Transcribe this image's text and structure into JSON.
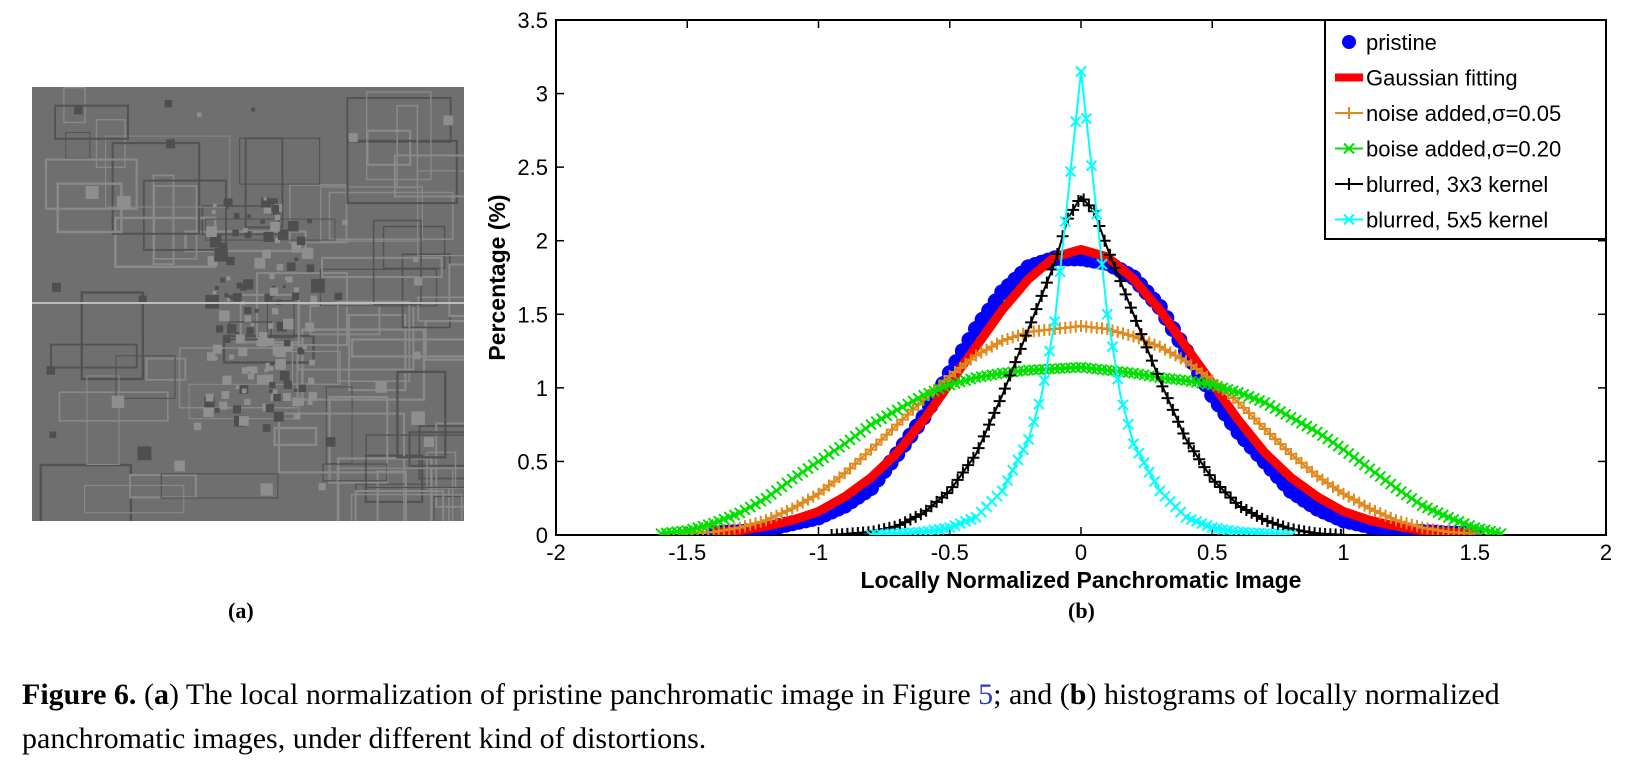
{
  "panel_a": {
    "label": "(a)",
    "description_icon": "grayscale-texture-image"
  },
  "panel_b": {
    "label": "(b)"
  },
  "caption": {
    "prefix": "Figure 6.",
    "open_a": " (",
    "a": "a",
    "text_a": ") The local normalization of pristine panchromatic image in Figure ",
    "ref": "5",
    "mid": "; and (",
    "b": "b",
    "text_b": ") histograms of locally normalized panchromatic images, under different kind of distortions."
  },
  "chart_data": {
    "type": "line",
    "xlabel": "Locally Normalized Panchromatic Image",
    "ylabel": "Percentage (%)",
    "xlim": [
      -2,
      2
    ],
    "ylim": [
      0,
      3.5
    ],
    "x_ticks": [
      "-2",
      "-1.5",
      "-1",
      "-0.5",
      "0",
      "0.5",
      "1",
      "1.5",
      "2"
    ],
    "y_ticks": [
      "0",
      "0.5",
      "1",
      "1.5",
      "2",
      "2.5",
      "3",
      "3.5"
    ],
    "legend_position": "top-right",
    "series": [
      {
        "name": "pristine",
        "color": "#0000ff",
        "marker": "dot",
        "points": [
          [
            -1.4,
            0.01
          ],
          [
            -1.3,
            0.02
          ],
          [
            -1.2,
            0.04
          ],
          [
            -1.1,
            0.08
          ],
          [
            -1.0,
            0.12
          ],
          [
            -0.9,
            0.2
          ],
          [
            -0.8,
            0.32
          ],
          [
            -0.7,
            0.55
          ],
          [
            -0.6,
            0.8
          ],
          [
            -0.5,
            1.1
          ],
          [
            -0.4,
            1.4
          ],
          [
            -0.3,
            1.65
          ],
          [
            -0.2,
            1.82
          ],
          [
            -0.1,
            1.88
          ],
          [
            0.0,
            1.88
          ],
          [
            0.1,
            1.85
          ],
          [
            0.2,
            1.75
          ],
          [
            0.3,
            1.55
          ],
          [
            0.4,
            1.25
          ],
          [
            0.5,
            0.95
          ],
          [
            0.6,
            0.7
          ],
          [
            0.7,
            0.5
          ],
          [
            0.8,
            0.3
          ],
          [
            0.9,
            0.18
          ],
          [
            1.0,
            0.1
          ],
          [
            1.1,
            0.06
          ],
          [
            1.2,
            0.03
          ],
          [
            1.3,
            0.02
          ],
          [
            1.4,
            0.01
          ],
          [
            1.5,
            0.01
          ]
        ]
      },
      {
        "name": "Gaussian fitting",
        "color": "#ff0000",
        "marker": "thick-line",
        "points": [
          [
            -1.4,
            0.02
          ],
          [
            -1.3,
            0.03
          ],
          [
            -1.2,
            0.06
          ],
          [
            -1.1,
            0.1
          ],
          [
            -1.0,
            0.16
          ],
          [
            -0.9,
            0.26
          ],
          [
            -0.8,
            0.39
          ],
          [
            -0.7,
            0.56
          ],
          [
            -0.6,
            0.78
          ],
          [
            -0.5,
            1.03
          ],
          [
            -0.4,
            1.28
          ],
          [
            -0.3,
            1.53
          ],
          [
            -0.2,
            1.74
          ],
          [
            -0.1,
            1.89
          ],
          [
            0.0,
            1.94
          ],
          [
            0.1,
            1.89
          ],
          [
            0.2,
            1.74
          ],
          [
            0.3,
            1.53
          ],
          [
            0.4,
            1.28
          ],
          [
            0.5,
            1.03
          ],
          [
            0.6,
            0.78
          ],
          [
            0.7,
            0.56
          ],
          [
            0.8,
            0.39
          ],
          [
            0.9,
            0.26
          ],
          [
            1.0,
            0.16
          ],
          [
            1.1,
            0.1
          ],
          [
            1.2,
            0.06
          ],
          [
            1.3,
            0.03
          ],
          [
            1.4,
            0.02
          ],
          [
            1.5,
            0.01
          ]
        ]
      },
      {
        "name": "noise added,σ=0.05",
        "color": "#e08a1e",
        "marker": "plus",
        "points": [
          [
            -1.5,
            0.01
          ],
          [
            -1.4,
            0.02
          ],
          [
            -1.3,
            0.05
          ],
          [
            -1.2,
            0.1
          ],
          [
            -1.1,
            0.18
          ],
          [
            -1.0,
            0.28
          ],
          [
            -0.9,
            0.42
          ],
          [
            -0.8,
            0.58
          ],
          [
            -0.7,
            0.75
          ],
          [
            -0.6,
            0.92
          ],
          [
            -0.5,
            1.08
          ],
          [
            -0.4,
            1.22
          ],
          [
            -0.3,
            1.32
          ],
          [
            -0.2,
            1.38
          ],
          [
            -0.1,
            1.4
          ],
          [
            0.0,
            1.42
          ],
          [
            0.1,
            1.4
          ],
          [
            0.2,
            1.35
          ],
          [
            0.3,
            1.28
          ],
          [
            0.4,
            1.18
          ],
          [
            0.5,
            1.05
          ],
          [
            0.6,
            0.9
          ],
          [
            0.7,
            0.72
          ],
          [
            0.8,
            0.55
          ],
          [
            0.9,
            0.4
          ],
          [
            1.0,
            0.28
          ],
          [
            1.1,
            0.18
          ],
          [
            1.2,
            0.1
          ],
          [
            1.3,
            0.05
          ],
          [
            1.4,
            0.02
          ],
          [
            1.5,
            0.01
          ]
        ]
      },
      {
        "name": "boise added,σ=0.20",
        "color": "#00e000",
        "marker": "x",
        "points": [
          [
            -1.6,
            0.01
          ],
          [
            -1.5,
            0.03
          ],
          [
            -1.4,
            0.08
          ],
          [
            -1.3,
            0.15
          ],
          [
            -1.2,
            0.25
          ],
          [
            -1.1,
            0.38
          ],
          [
            -1.0,
            0.5
          ],
          [
            -0.9,
            0.62
          ],
          [
            -0.8,
            0.75
          ],
          [
            -0.7,
            0.85
          ],
          [
            -0.6,
            0.95
          ],
          [
            -0.5,
            1.02
          ],
          [
            -0.4,
            1.07
          ],
          [
            -0.3,
            1.1
          ],
          [
            -0.2,
            1.12
          ],
          [
            -0.1,
            1.13
          ],
          [
            0.0,
            1.14
          ],
          [
            0.1,
            1.12
          ],
          [
            0.2,
            1.1
          ],
          [
            0.3,
            1.07
          ],
          [
            0.4,
            1.05
          ],
          [
            0.5,
            1.02
          ],
          [
            0.6,
            0.97
          ],
          [
            0.7,
            0.9
          ],
          [
            0.8,
            0.8
          ],
          [
            0.9,
            0.7
          ],
          [
            1.0,
            0.58
          ],
          [
            1.1,
            0.45
          ],
          [
            1.2,
            0.32
          ],
          [
            1.3,
            0.2
          ],
          [
            1.4,
            0.12
          ],
          [
            1.5,
            0.05
          ],
          [
            1.6,
            0.01
          ]
        ]
      },
      {
        "name": "blurred, 3x3 kernel",
        "color": "#000000",
        "marker": "plus",
        "points": [
          [
            -0.95,
            0.0
          ],
          [
            -0.8,
            0.02
          ],
          [
            -0.7,
            0.06
          ],
          [
            -0.6,
            0.15
          ],
          [
            -0.5,
            0.3
          ],
          [
            -0.4,
            0.55
          ],
          [
            -0.3,
            0.95
          ],
          [
            -0.2,
            1.4
          ],
          [
            -0.1,
            1.85
          ],
          [
            -0.05,
            2.15
          ],
          [
            0.0,
            2.3
          ],
          [
            0.05,
            2.2
          ],
          [
            0.1,
            1.95
          ],
          [
            0.2,
            1.5
          ],
          [
            0.3,
            1.05
          ],
          [
            0.4,
            0.65
          ],
          [
            0.5,
            0.38
          ],
          [
            0.6,
            0.2
          ],
          [
            0.7,
            0.1
          ],
          [
            0.8,
            0.04
          ],
          [
            0.9,
            0.01
          ],
          [
            1.0,
            0.0
          ]
        ]
      },
      {
        "name": "blurred, 5x5 kernel",
        "color": "#00ffff",
        "marker": "x",
        "points": [
          [
            -0.8,
            0.0
          ],
          [
            -0.6,
            0.02
          ],
          [
            -0.5,
            0.05
          ],
          [
            -0.4,
            0.12
          ],
          [
            -0.3,
            0.3
          ],
          [
            -0.2,
            0.65
          ],
          [
            -0.15,
            0.95
          ],
          [
            -0.1,
            1.45
          ],
          [
            -0.05,
            2.3
          ],
          [
            0.0,
            3.15
          ],
          [
            0.05,
            2.35
          ],
          [
            0.1,
            1.5
          ],
          [
            0.15,
            0.95
          ],
          [
            0.2,
            0.62
          ],
          [
            0.3,
            0.3
          ],
          [
            0.4,
            0.12
          ],
          [
            0.5,
            0.05
          ],
          [
            0.6,
            0.02
          ],
          [
            0.8,
            0.0
          ]
        ]
      }
    ]
  }
}
